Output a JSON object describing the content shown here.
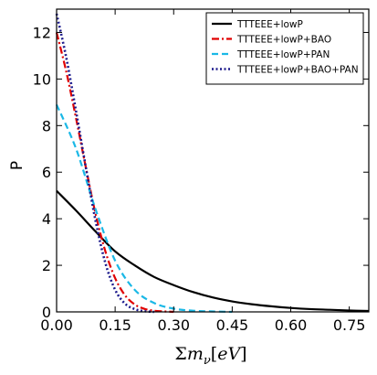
{
  "chart_data": {
    "type": "line",
    "xlabel_parts": {
      "sigma": "Σ",
      "m": "m",
      "sub": "ν",
      "bracket_open": "[",
      "eV": "eV",
      "bracket_close": "]"
    },
    "ylabel": "P",
    "xlim": [
      0,
      0.8
    ],
    "ylim": [
      0,
      13
    ],
    "xticks": [
      "0.00",
      "0.15",
      "0.30",
      "0.45",
      "0.60",
      "0.75"
    ],
    "yticks": [
      "0",
      "2",
      "4",
      "6",
      "8",
      "10",
      "12"
    ],
    "grid": false,
    "legend_position": "top-right",
    "series": [
      {
        "name": "TTTEEE+lowP",
        "color": "#000000",
        "style": "solid",
        "x": [
          0.0,
          0.05,
          0.1,
          0.15,
          0.2,
          0.25,
          0.3,
          0.35,
          0.4,
          0.45,
          0.5,
          0.55,
          0.6,
          0.65,
          0.7,
          0.75,
          0.8
        ],
        "y": [
          5.2,
          4.35,
          3.45,
          2.6,
          2.0,
          1.5,
          1.15,
          0.85,
          0.62,
          0.45,
          0.33,
          0.24,
          0.17,
          0.12,
          0.09,
          0.06,
          0.04
        ]
      },
      {
        "name": "TTTEEE+lowP+BAO",
        "color": "#e00000",
        "style": "dashdot",
        "x": [
          0.0,
          0.025,
          0.05,
          0.075,
          0.1,
          0.125,
          0.15,
          0.175,
          0.2,
          0.225,
          0.25,
          0.275,
          0.3
        ],
        "y": [
          12.0,
          10.3,
          8.3,
          6.2,
          4.2,
          2.6,
          1.45,
          0.72,
          0.32,
          0.13,
          0.05,
          0.02,
          0.0
        ]
      },
      {
        "name": "TTTEEE+lowP+PAN",
        "color": "#1ab8e6",
        "style": "dashed",
        "x": [
          0.0,
          0.05,
          0.1,
          0.15,
          0.2,
          0.25,
          0.3,
          0.35,
          0.4,
          0.45
        ],
        "y": [
          8.9,
          7.0,
          4.4,
          2.2,
          0.95,
          0.38,
          0.14,
          0.05,
          0.02,
          0.0
        ]
      },
      {
        "name": "TTTEEE+lowP+BAO+PAN",
        "color": "#1c1a8c",
        "style": "dotted",
        "x": [
          0.0,
          0.025,
          0.05,
          0.075,
          0.1,
          0.125,
          0.15,
          0.175,
          0.2,
          0.225,
          0.25
        ],
        "y": [
          12.8,
          10.9,
          8.6,
          6.2,
          3.9,
          2.1,
          0.95,
          0.36,
          0.12,
          0.03,
          0.0
        ]
      }
    ]
  }
}
